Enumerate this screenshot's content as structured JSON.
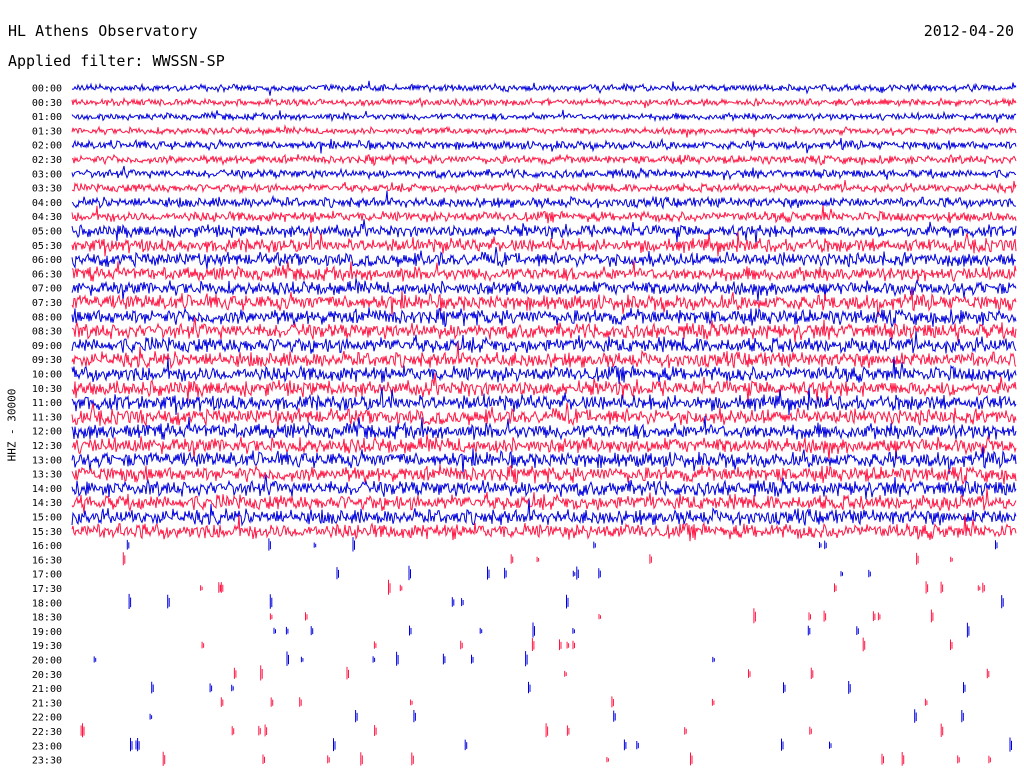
{
  "header": {
    "title": "HL Athens Observatory",
    "date": "2012-04-20",
    "filter": "Applied filter: WWSSN-SP"
  },
  "chart_data": {
    "type": "line",
    "title": "HL Athens Observatory",
    "ylabel": "HHZ - 30000",
    "colors": {
      "odd": "#0000dd",
      "even": "#ff1744"
    },
    "rows": [
      {
        "label": "00:00",
        "amp": 4,
        "hasData": true
      },
      {
        "label": "00:30",
        "amp": 4,
        "hasData": true
      },
      {
        "label": "01:00",
        "amp": 4,
        "hasData": true
      },
      {
        "label": "01:30",
        "amp": 4,
        "hasData": true
      },
      {
        "label": "02:00",
        "amp": 5,
        "hasData": true
      },
      {
        "label": "02:30",
        "amp": 5,
        "hasData": true
      },
      {
        "label": "03:00",
        "amp": 5,
        "hasData": true
      },
      {
        "label": "03:30",
        "amp": 5,
        "hasData": true
      },
      {
        "label": "04:00",
        "amp": 6,
        "hasData": true
      },
      {
        "label": "04:30",
        "amp": 6,
        "hasData": true
      },
      {
        "label": "05:00",
        "amp": 7,
        "hasData": true
      },
      {
        "label": "05:30",
        "amp": 8,
        "hasData": true
      },
      {
        "label": "06:00",
        "amp": 8,
        "hasData": true
      },
      {
        "label": "06:30",
        "amp": 8,
        "hasData": true
      },
      {
        "label": "07:00",
        "amp": 8,
        "hasData": true
      },
      {
        "label": "07:30",
        "amp": 9,
        "hasData": true
      },
      {
        "label": "08:00",
        "amp": 9,
        "hasData": true
      },
      {
        "label": "08:30",
        "amp": 9,
        "hasData": true
      },
      {
        "label": "09:00",
        "amp": 9,
        "hasData": true
      },
      {
        "label": "09:30",
        "amp": 9,
        "hasData": true
      },
      {
        "label": "10:00",
        "amp": 9,
        "hasData": true
      },
      {
        "label": "10:30",
        "amp": 9,
        "hasData": true
      },
      {
        "label": "11:00",
        "amp": 9,
        "hasData": true
      },
      {
        "label": "11:30",
        "amp": 9,
        "hasData": true
      },
      {
        "label": "12:00",
        "amp": 9,
        "hasData": true
      },
      {
        "label": "12:30",
        "amp": 9,
        "hasData": true
      },
      {
        "label": "13:00",
        "amp": 9,
        "hasData": true
      },
      {
        "label": "13:30",
        "amp": 9,
        "hasData": true
      },
      {
        "label": "14:00",
        "amp": 9,
        "hasData": true
      },
      {
        "label": "14:30",
        "amp": 9,
        "hasData": true
      },
      {
        "label": "15:00",
        "amp": 9,
        "hasData": true
      },
      {
        "label": "15:30",
        "amp": 9,
        "hasData": true
      },
      {
        "label": "16:00",
        "amp": 3,
        "hasData": false
      },
      {
        "label": "16:30",
        "amp": 3,
        "hasData": false
      },
      {
        "label": "17:00",
        "amp": 3,
        "hasData": false
      },
      {
        "label": "17:30",
        "amp": 3,
        "hasData": false
      },
      {
        "label": "18:00",
        "amp": 3,
        "hasData": false
      },
      {
        "label": "18:30",
        "amp": 3,
        "hasData": false
      },
      {
        "label": "19:00",
        "amp": 3,
        "hasData": false
      },
      {
        "label": "19:30",
        "amp": 3,
        "hasData": false
      },
      {
        "label": "20:00",
        "amp": 3,
        "hasData": false
      },
      {
        "label": "20:30",
        "amp": 3,
        "hasData": false
      },
      {
        "label": "21:00",
        "amp": 3,
        "hasData": false
      },
      {
        "label": "21:30",
        "amp": 3,
        "hasData": false
      },
      {
        "label": "22:00",
        "amp": 3,
        "hasData": false
      },
      {
        "label": "22:30",
        "amp": 3,
        "hasData": false
      },
      {
        "label": "23:00",
        "amp": 3,
        "hasData": false
      },
      {
        "label": "23:30",
        "amp": 3,
        "hasData": false
      }
    ]
  }
}
